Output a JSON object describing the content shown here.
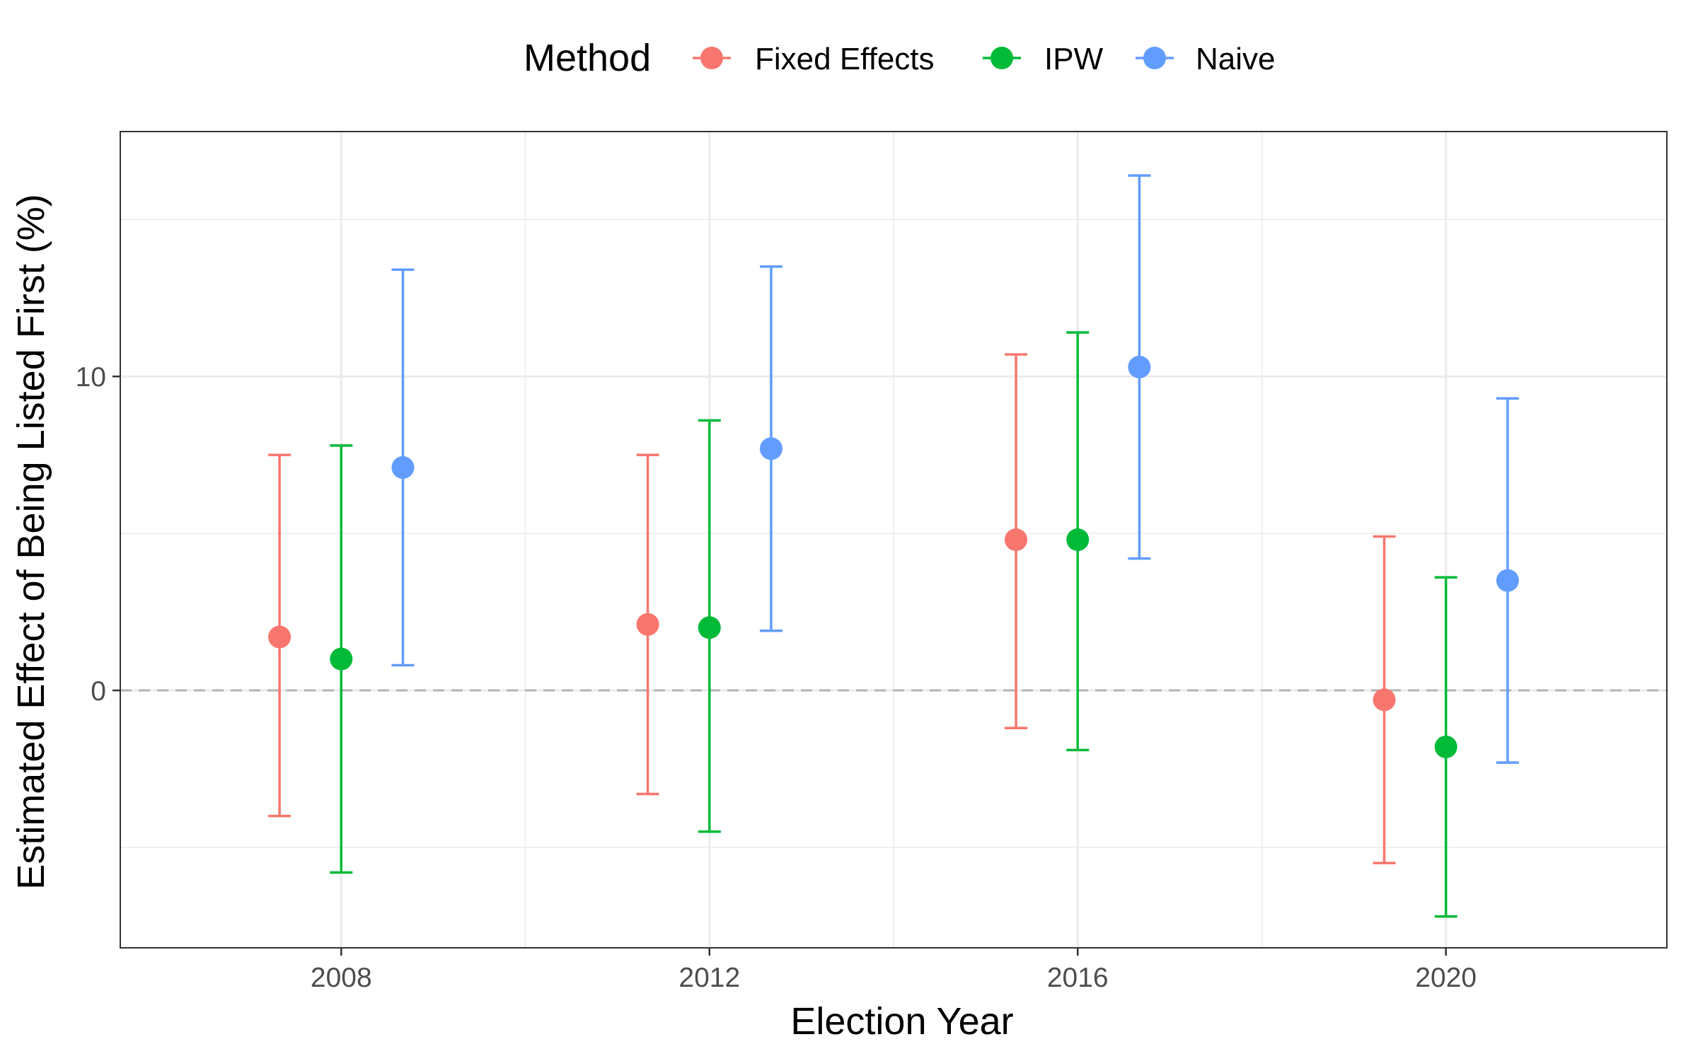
{
  "chart_data": {
    "type": "scatter",
    "title": "",
    "xlabel": "Election Year",
    "ylabel": "Estimated Effect of Being Listed First (%)",
    "x": [
      2008,
      2012,
      2016,
      2020
    ],
    "x_ticks": [
      "2008",
      "2012",
      "2016",
      "2020"
    ],
    "xlim": [
      2005.6,
      2022.4
    ],
    "y_ticks": [
      0,
      10
    ],
    "y_tick_labels": [
      "0",
      "10"
    ],
    "ylim": [
      -8.2,
      17.8
    ],
    "grid": true,
    "reference_line": 0,
    "legend": {
      "title": "Method",
      "position": "top"
    },
    "series": [
      {
        "name": "Fixed Effects",
        "color": "#F8766D",
        "x_offset": -0.67,
        "estimate": [
          1.7,
          2.1,
          4.8,
          -0.3
        ],
        "lower": [
          -4.0,
          -3.3,
          -1.2,
          -5.5
        ],
        "upper": [
          7.5,
          7.5,
          10.7,
          4.9
        ]
      },
      {
        "name": "IPW",
        "color": "#00BA38",
        "x_offset": 0.0,
        "estimate": [
          1.0,
          2.0,
          4.8,
          -1.8
        ],
        "lower": [
          -5.8,
          -4.5,
          -1.9,
          -7.2
        ],
        "upper": [
          7.8,
          8.6,
          11.4,
          3.6
        ]
      },
      {
        "name": "Naive",
        "color": "#619CFF",
        "x_offset": 0.67,
        "estimate": [
          7.1,
          7.7,
          10.3,
          3.5
        ],
        "lower": [
          0.8,
          1.9,
          4.2,
          -2.3
        ],
        "upper": [
          13.4,
          13.5,
          16.4,
          9.3
        ]
      }
    ]
  }
}
